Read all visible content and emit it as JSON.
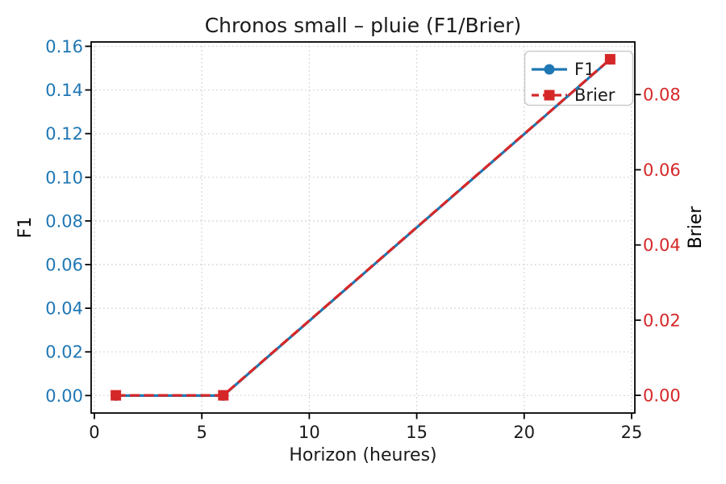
{
  "chart_data": {
    "type": "line",
    "title": "Chronos small – pluie (F1/Brier)",
    "xlabel": "Horizon (heures)",
    "ylabel_left": "F1",
    "ylabel_right": "Brier",
    "x": [
      1,
      6,
      24
    ],
    "series": [
      {
        "name": "F1",
        "axis": "left",
        "color": "#1f77b4",
        "marker": "circle",
        "linestyle": "solid",
        "values": [
          0.0,
          0.0,
          0.154
        ]
      },
      {
        "name": "Brier",
        "axis": "right",
        "color": "#d62728",
        "marker": "square",
        "linestyle": "dashed",
        "values": [
          0.0,
          0.0,
          0.0894
        ]
      }
    ],
    "xticks": [
      "0",
      "5",
      "10",
      "15",
      "20",
      "25"
    ],
    "yticks_left": [
      "0.00",
      "0.02",
      "0.04",
      "0.06",
      "0.08",
      "0.10",
      "0.12",
      "0.14",
      "0.16"
    ],
    "yticks_right": [
      "0.00",
      "0.02",
      "0.04",
      "0.06",
      "0.08"
    ],
    "xlim": [
      -0.15,
      25.15
    ],
    "ylim_left": [
      -0.008,
      0.162
    ],
    "ylim_right": [
      -0.0047,
      0.094
    ],
    "grid": true,
    "grid_style": "dotted",
    "legend_position": "upper right",
    "colors": {
      "f1": "#1f77b4",
      "brier": "#d62728",
      "grid": "#d4d4d4",
      "text": "#1a1a1a"
    }
  }
}
